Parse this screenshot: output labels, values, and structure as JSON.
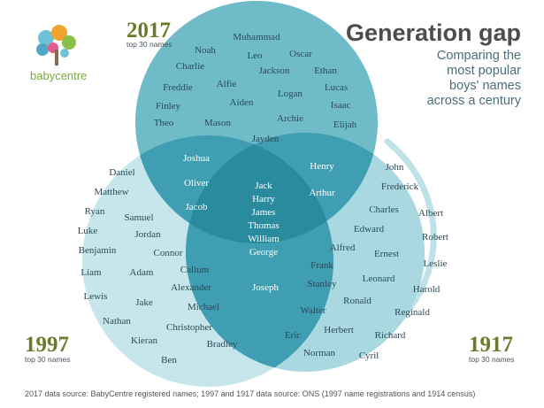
{
  "brand": {
    "logo_text": "babycentre"
  },
  "title": "Generation gap",
  "subtitle": [
    "Comparing the",
    "most popular",
    "boys' names",
    "across a century"
  ],
  "sets": {
    "y2017": {
      "year": "2017",
      "sub": "top 30 names",
      "color": "#6fbbc8"
    },
    "y1997": {
      "year": "1997",
      "sub": "top 30 names",
      "color": "#c6e6ec"
    },
    "y1917": {
      "year": "1917",
      "sub": "top 30 names",
      "color": "#a9d8e1"
    }
  },
  "colors": {
    "mid": "#3f9eb1",
    "center": "#2a8a9e",
    "ring": "#bfe2e8"
  },
  "regions": {
    "only_2017": [
      "Muhammad",
      "Noah",
      "Leo",
      "Oscar",
      "Charlie",
      "Jackson",
      "Ethan",
      "Freddie",
      "Alfie",
      "Logan",
      "Lucas",
      "Finley",
      "Aiden",
      "Isaac",
      "Theo",
      "Mason",
      "Archie",
      "Elijah",
      "Jayden"
    ],
    "y2017_1997": [
      "Joshua",
      "Oliver",
      "Jacob"
    ],
    "y2017_1917": [
      "Henry",
      "Arthur"
    ],
    "all_three": [
      "Jack",
      "Harry",
      "James",
      "Thomas",
      "William",
      "George"
    ],
    "y1997_1917": [
      "Joseph"
    ],
    "only_1997": [
      "Daniel",
      "Matthew",
      "Ryan",
      "Samuel",
      "Luke",
      "Jordan",
      "Benjamin",
      "Connor",
      "Liam",
      "Adam",
      "Callum",
      "Lewis",
      "Jake",
      "Alexander",
      "Michael",
      "Nathan",
      "Christopher",
      "Kieran",
      "Bradley",
      "Ben"
    ],
    "only_1917": [
      "John",
      "Frederick",
      "Charles",
      "Albert",
      "Edward",
      "Robert",
      "Alfred",
      "Ernest",
      "Frank",
      "Leslie",
      "Stanley",
      "Leonard",
      "Harold",
      "Ronald",
      "Walter",
      "Reginald",
      "Eric",
      "Herbert",
      "Richard",
      "Norman",
      "Cyril"
    ]
  },
  "source": "2017 data source: BabyCentre registered names; 1997 and 1917 data source: ONS (1997 name registrations and 1914 census)"
}
